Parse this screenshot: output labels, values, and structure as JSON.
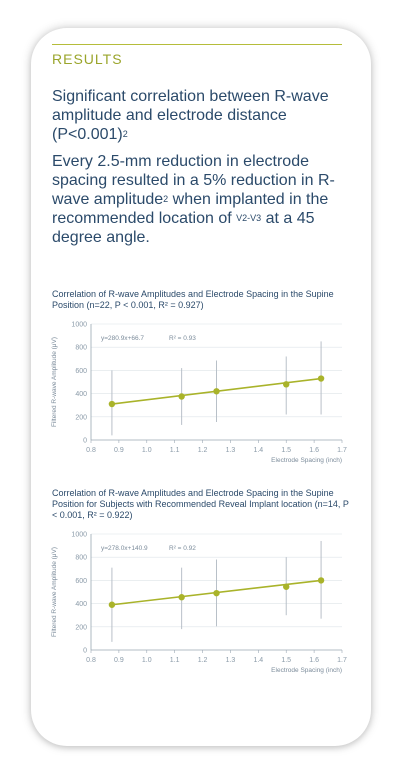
{
  "results": {
    "label": "RESULTS",
    "headline_main": "Significant correlation between R-wave amplitude and electrode distance (P<0.001)",
    "headline_sup": "2",
    "body_part1": "Every 2.5-mm reduction in electrode spacing resulted in a 5% reduction in R-wave amplitude",
    "body_sup1": "2",
    "body_part2": " when implanted in the recommended location of ",
    "body_sup2": "V2-V3",
    "body_part3": " at a 45 degree angle."
  },
  "colors": {
    "accent": "#b5bd3a",
    "text": "#2b4a6a",
    "series": "#a9b32a",
    "errorbar": "#b8c0c8"
  },
  "chart_data": [
    {
      "type": "scatter",
      "title": "Correlation of R-wave Amplitudes and Electrode Spacing in the Supine Position (n=22, P < 0.001, R² = 0.927)",
      "xlabel": "Electrode Spacing (inch)",
      "ylabel": "Filtered R-wave Amplitude (μV)",
      "xlim": [
        0.8,
        1.7
      ],
      "ylim": [
        0,
        1000
      ],
      "xticks": [
        "0.8",
        "0.9",
        "1.0",
        "1.1",
        "1.2",
        "1.3",
        "1.4",
        "1.5",
        "1.6",
        "1.7"
      ],
      "yticks": [
        "0",
        "200",
        "400",
        "600",
        "800",
        "1000"
      ],
      "equation": "y=280.9x+66.7",
      "r2": "R² = 0.93",
      "trend": {
        "slope": 280.9,
        "intercept": 66.7
      },
      "points": [
        {
          "x": 0.875,
          "y": 310,
          "low": 40,
          "high": 600
        },
        {
          "x": 1.125,
          "y": 375,
          "low": 130,
          "high": 620
        },
        {
          "x": 1.25,
          "y": 420,
          "low": 155,
          "high": 685
        },
        {
          "x": 1.5,
          "y": 480,
          "low": 220,
          "high": 720
        },
        {
          "x": 1.625,
          "y": 530,
          "low": 220,
          "high": 850
        }
      ],
      "grid": true
    },
    {
      "type": "scatter",
      "title": "Correlation of R-wave Amplitudes and Electrode Spacing in the Supine Position for Subjects with Recommended Reveal Implant location (n=14, P < 0.001, R² = 0.922)",
      "xlabel": "Electrode Spacing (inch)",
      "ylabel": "Filtered R-wave Amplitude (μV)",
      "xlim": [
        0.8,
        1.7
      ],
      "ylim": [
        0,
        1000
      ],
      "xticks": [
        "0.8",
        "0.9",
        "1.0",
        "1.1",
        "1.2",
        "1.3",
        "1.4",
        "1.5",
        "1.6",
        "1.7"
      ],
      "yticks": [
        "0",
        "200",
        "400",
        "600",
        "800",
        "1000"
      ],
      "equation": "y=278.0x+140.9",
      "r2": "R² = 0.92",
      "trend": {
        "slope": 278.0,
        "intercept": 140.9
      },
      "points": [
        {
          "x": 0.875,
          "y": 390,
          "low": 70,
          "high": 710
        },
        {
          "x": 1.125,
          "y": 455,
          "low": 180,
          "high": 710
        },
        {
          "x": 1.25,
          "y": 490,
          "low": 205,
          "high": 780
        },
        {
          "x": 1.5,
          "y": 545,
          "low": 300,
          "high": 800
        },
        {
          "x": 1.625,
          "y": 600,
          "low": 270,
          "high": 940
        }
      ],
      "grid": true
    }
  ]
}
